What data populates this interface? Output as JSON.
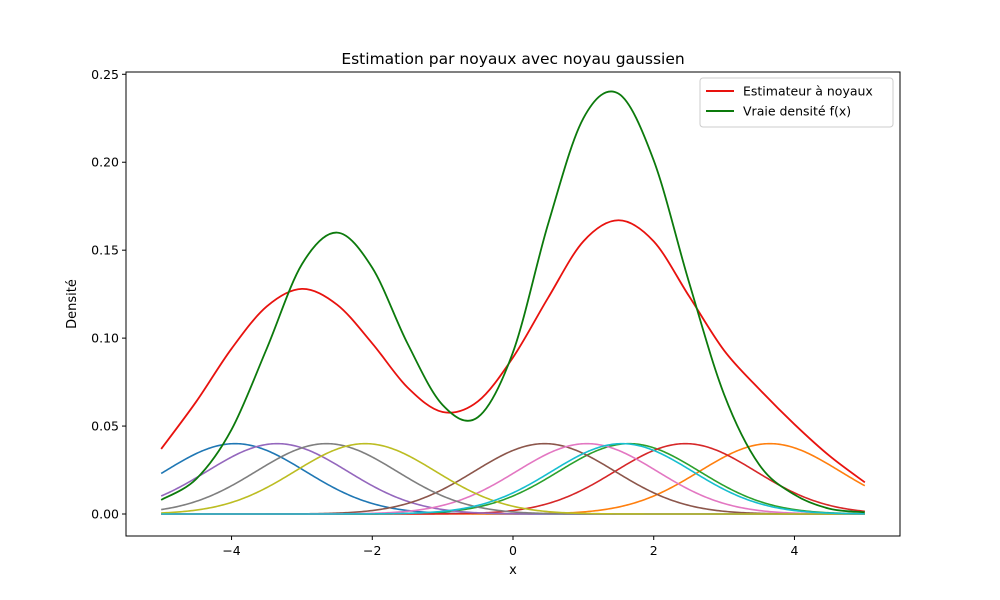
{
  "chart_data": {
    "type": "line",
    "title": "Estimation par noyaux avec noyau gaussien",
    "xlabel": "x",
    "ylabel": "Densité",
    "xlim": [
      -5.5,
      5.5
    ],
    "ylim": [
      -0.0125,
      0.2513
    ],
    "xticks": [
      -4,
      -2,
      0,
      2,
      4
    ],
    "xtick_labels": [
      "−4",
      "−2",
      "0",
      "2",
      "4"
    ],
    "yticks": [
      0.0,
      0.05,
      0.1,
      0.15,
      0.2,
      0.25
    ],
    "ytick_labels": [
      "0.00",
      "0.05",
      "0.10",
      "0.15",
      "0.20",
      "0.25"
    ],
    "grid": false,
    "legend_position": "top-right",
    "x_range": [
      -5,
      5
    ],
    "kernel": {
      "bandwidth": 1.0,
      "peak": 0.04,
      "centers": [
        -3.95,
        3.65,
        1.65,
        2.45,
        -3.35,
        0.45,
        1.05,
        -2.65,
        -2.1,
        1.55
      ],
      "colors": [
        "#1f77b4",
        "#ff7f0e",
        "#2ca02c",
        "#d62728",
        "#9467bd",
        "#8c564b",
        "#e377c2",
        "#7f7f7f",
        "#bcbd22",
        "#17becf"
      ]
    },
    "series": [
      {
        "name": "Estimateur à noyaux",
        "color": "#e8120e",
        "x": [
          -5,
          -4.5,
          -4,
          -3.5,
          -3,
          -2.5,
          -2,
          -1.5,
          -1,
          -0.5,
          0,
          0.5,
          1,
          1.5,
          2,
          2.5,
          3,
          3.5,
          4,
          4.5,
          5
        ],
        "y": [
          0.037,
          0.064,
          0.094,
          0.118,
          0.128,
          0.119,
          0.097,
          0.072,
          0.058,
          0.064,
          0.089,
          0.123,
          0.155,
          0.167,
          0.155,
          0.124,
          0.093,
          0.071,
          0.051,
          0.033,
          0.018
        ]
      },
      {
        "name": "Vraie densité f(x)",
        "color": "#0c7a0c",
        "x": [
          -5,
          -4.5,
          -4,
          -3.5,
          -3,
          -2.5,
          -2,
          -1.5,
          -1,
          -0.5,
          0,
          0.5,
          1,
          1.5,
          2,
          2.5,
          3,
          3.5,
          4,
          4.5,
          5
        ],
        "y": [
          0.008,
          0.02,
          0.048,
          0.094,
          0.142,
          0.16,
          0.14,
          0.097,
          0.062,
          0.055,
          0.092,
          0.165,
          0.225,
          0.239,
          0.201,
          0.132,
          0.068,
          0.028,
          0.011,
          0.003,
          0.001
        ]
      }
    ]
  }
}
